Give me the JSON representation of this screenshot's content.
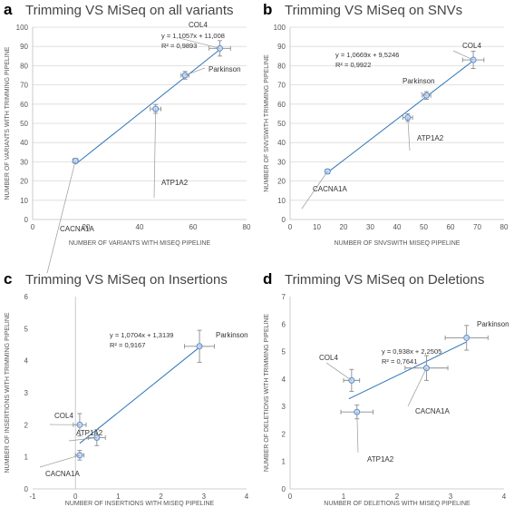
{
  "chart_data": [
    {
      "type": "scatter",
      "letter": "a",
      "title": "Trimming VS MiSeq on all variants",
      "xlabel": "NUMBER OF VARIANTS WITH MISEQ PIPELINE",
      "ylabel": "NUMBER OF VARIANTS WITH TRIMMING PIPELINE",
      "xlim": [
        0,
        80
      ],
      "ylim": [
        0,
        100
      ],
      "xticks": [
        0,
        20,
        40,
        60,
        80
      ],
      "yticks": [
        0,
        10,
        20,
        30,
        40,
        50,
        60,
        70,
        80,
        90,
        100
      ],
      "grid": "horizontal",
      "equation": "y = 1,1057x + 11,008",
      "r2": "R² = 0,9893",
      "trendline": {
        "x": [
          16,
          70
        ],
        "y": [
          28.7,
          88.4
        ]
      },
      "points": [
        {
          "label": "CACNA1A",
          "x": 16,
          "y": 30.5,
          "xerr": 1,
          "yerr": 1.3
        },
        {
          "label": "ATP1A2",
          "x": 46,
          "y": 57.5,
          "xerr": 2,
          "yerr": 2.3
        },
        {
          "label": "Parkinson",
          "x": 57,
          "y": 75,
          "xerr": 1.5,
          "yerr": 2
        },
        {
          "label": "COL4",
          "x": 70,
          "y": 89,
          "xerr": 4,
          "yerr": 4
        }
      ]
    },
    {
      "type": "scatter",
      "letter": "b",
      "title": "Trimming VS MiSeq on SNVs",
      "xlabel": "NUMBER OF SNVSWITH MISEQ PIPELINE",
      "ylabel": "NUMBER OF SNVSWITH TRIMMING PIPELINE",
      "xlim": [
        0,
        80
      ],
      "ylim": [
        0,
        100
      ],
      "xticks": [
        0,
        10,
        20,
        30,
        40,
        50,
        60,
        70,
        80
      ],
      "yticks": [
        0,
        10,
        20,
        30,
        40,
        50,
        60,
        70,
        80,
        90,
        100
      ],
      "grid": "horizontal",
      "equation": "y = 1,0669x + 9,5246",
      "r2": "R² = 0,9922",
      "trendline": {
        "x": [
          13.5,
          68.5
        ],
        "y": [
          23.9,
          82.6
        ]
      },
      "points": [
        {
          "label": "CACNA1A",
          "x": 14,
          "y": 25,
          "xerr": 0.8,
          "yerr": 1.2
        },
        {
          "label": "ATP1A2",
          "x": 44,
          "y": 53,
          "xerr": 1.8,
          "yerr": 2
        },
        {
          "label": "Parkinson",
          "x": 51,
          "y": 64.5,
          "xerr": 1.6,
          "yerr": 2
        },
        {
          "label": "COL4",
          "x": 68.5,
          "y": 83,
          "xerr": 4,
          "yerr": 4.5
        }
      ]
    },
    {
      "type": "scatter",
      "letter": "c",
      "title": "Trimming VS MiSeq on Insertions",
      "xlabel": "NUMBER OF INSERTIONS WITH MISEQ PIPELINE",
      "ylabel": "NUMBER OF INSERTIONS WITH TRIMMING PIPELINE",
      "xlim": [
        -1,
        4
      ],
      "ylim": [
        0,
        6
      ],
      "xticks": [
        -1,
        0,
        1,
        2,
        3,
        4
      ],
      "yticks": [
        0,
        1,
        2,
        3,
        4,
        5,
        6
      ],
      "grid": "none",
      "equation": "y = 1,0704x + 1,3139",
      "r2": "R² = 0,9167",
      "trendline": {
        "x": [
          0.1,
          2.9
        ],
        "y": [
          1.42,
          4.42
        ]
      },
      "points": [
        {
          "label": "CACNA1A",
          "x": 0.1,
          "y": 1.05,
          "xerr": 0.1,
          "yerr": 0.15
        },
        {
          "label": "ATP1A2",
          "x": 0.5,
          "y": 1.6,
          "xerr": 0.2,
          "yerr": 0.25
        },
        {
          "label": "COL4",
          "x": 0.1,
          "y": 2.0,
          "xerr": 0.15,
          "yerr": 0.35
        },
        {
          "label": "Parkinson",
          "x": 2.9,
          "y": 4.45,
          "xerr": 0.35,
          "yerr": 0.5
        }
      ]
    },
    {
      "type": "scatter",
      "letter": "d",
      "title": "Trimming VS MiSeq on Deletions",
      "xlabel": "NUMBER OF DELETIONS WITH MISEQ PIPELINE",
      "ylabel": "NUMBER OF DELETIONS WITH TRIMMING PIPELINE",
      "xlim": [
        0,
        4
      ],
      "ylim": [
        0,
        7
      ],
      "xticks": [
        0,
        1,
        2,
        3,
        4
      ],
      "yticks": [
        0,
        1,
        2,
        3,
        4,
        5,
        6,
        7
      ],
      "grid": "none",
      "equation": "y = 0,938x + 2,2505",
      "r2": "R² = 0,7641",
      "trendline": {
        "x": [
          1.1,
          3.3
        ],
        "y": [
          3.28,
          5.35
        ]
      },
      "points": [
        {
          "label": "COL4",
          "x": 1.15,
          "y": 3.95,
          "xerr": 0.15,
          "yerr": 0.4
        },
        {
          "label": "ATP1A2",
          "x": 1.25,
          "y": 2.8,
          "xerr": 0.3,
          "yerr": 0.25
        },
        {
          "label": "CACNA1A",
          "x": 2.55,
          "y": 4.4,
          "xerr": 0.4,
          "yerr": 0.45
        },
        {
          "label": "Parkinson",
          "x": 3.3,
          "y": 5.5,
          "xerr": 0.4,
          "yerr": 0.45
        }
      ]
    }
  ]
}
